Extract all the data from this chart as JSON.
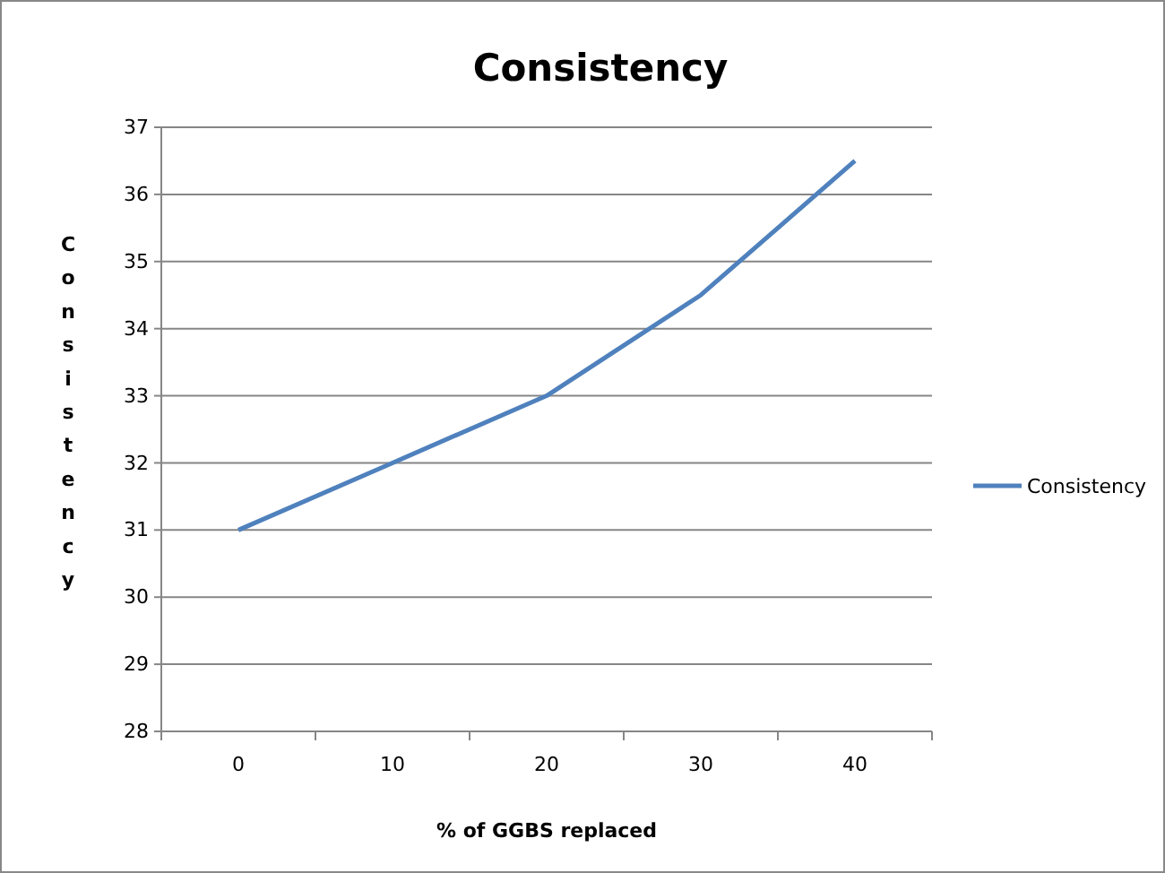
{
  "chart_data": {
    "type": "line",
    "title": "Consistency",
    "xlabel": "% of GGBS replaced",
    "ylabel": "Consistency",
    "categories": [
      "0",
      "10",
      "20",
      "30",
      "40"
    ],
    "series": [
      {
        "name": "Consistency",
        "color": "#4f81bd",
        "values": [
          31,
          32,
          33,
          34.5,
          36.5
        ]
      }
    ],
    "ylim": [
      28,
      37
    ],
    "yticks": [
      28,
      29,
      30,
      31,
      32,
      33,
      34,
      35,
      36,
      37
    ],
    "grid": "y",
    "legend": "right",
    "marker": "none",
    "line_style": "solid"
  }
}
